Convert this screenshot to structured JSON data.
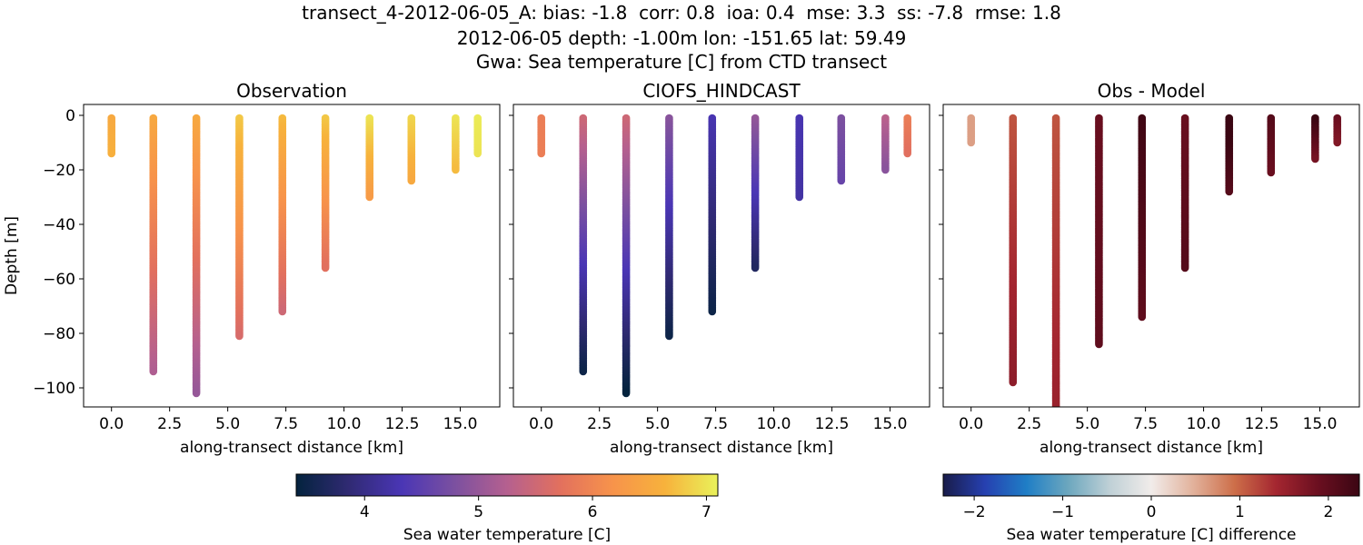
{
  "suptitle": {
    "line1": "transect_4-2012-06-05_A: bias: -1.8  corr: 0.8  ioa: 0.4  mse: 3.3  ss: -7.8  rmse: 1.8",
    "line2": "2012-06-05 depth: -1.00m lon: -151.65 lat: 59.49",
    "line3": "Gwa: Sea temperature [C] from CTD transect"
  },
  "colors": {
    "thermal": [
      "#04233e",
      "#302a73",
      "#4a36b5",
      "#7b50a0",
      "#b5608f",
      "#e2705e",
      "#f7934b",
      "#f7b23c",
      "#e9f25a"
    ],
    "balance": [
      "#191c4a",
      "#2640b0",
      "#1f7ec6",
      "#6ca7be",
      "#bfd0d6",
      "#f1ecea",
      "#e2b29c",
      "#cd6e49",
      "#a42630",
      "#6b0f20",
      "#3b0613"
    ]
  },
  "chart_data": [
    {
      "type": "scatter",
      "title": "Observation",
      "xlabel": "along-transect distance [km]",
      "ylabel": "Depth [m]",
      "xlim": [
        -1.2,
        16.7
      ],
      "ylim": [
        -107,
        4
      ],
      "xticks": [
        "0.0",
        "2.5",
        "5.0",
        "7.5",
        "10.0",
        "12.5",
        "15.0"
      ],
      "xtick_values": [
        0,
        2.5,
        5,
        7.5,
        10,
        12.5,
        15
      ],
      "yticks": [
        "0",
        "−20",
        "−40",
        "−60",
        "−80",
        "−100"
      ],
      "ytick_values": [
        0,
        -20,
        -40,
        -60,
        -80,
        -100
      ],
      "colormap": "thermal",
      "clim": [
        3.4,
        7.1
      ],
      "profiles": [
        {
          "x": 0.0,
          "max_depth": 14,
          "value_top": 6.5,
          "value_bottom": 6.6
        },
        {
          "x": 1.8,
          "max_depth": 94,
          "value_top": 6.5,
          "value_bottom": 5.2
        },
        {
          "x": 3.65,
          "max_depth": 102,
          "value_top": 6.5,
          "value_bottom": 5.0
        },
        {
          "x": 5.5,
          "max_depth": 81,
          "value_top": 6.8,
          "value_bottom": 5.6
        },
        {
          "x": 7.35,
          "max_depth": 72,
          "value_top": 6.7,
          "value_bottom": 5.5
        },
        {
          "x": 9.2,
          "max_depth": 56,
          "value_top": 6.8,
          "value_bottom": 5.7
        },
        {
          "x": 11.1,
          "max_depth": 30,
          "value_top": 7.0,
          "value_bottom": 6.3
        },
        {
          "x": 12.9,
          "max_depth": 24,
          "value_top": 6.9,
          "value_bottom": 6.5
        },
        {
          "x": 14.8,
          "max_depth": 20,
          "value_top": 7.0,
          "value_bottom": 6.7
        },
        {
          "x": 15.75,
          "max_depth": 14,
          "value_top": 7.05,
          "value_bottom": 7.0
        }
      ]
    },
    {
      "type": "scatter",
      "title": "CIOFS_HINDCAST",
      "xlabel": "along-transect distance [km]",
      "xlim": [
        -1.2,
        16.7
      ],
      "ylim": [
        -107,
        4
      ],
      "xticks": [
        "0.0",
        "2.5",
        "5.0",
        "7.5",
        "10.0",
        "12.5",
        "15.0"
      ],
      "xtick_values": [
        0,
        2.5,
        5,
        7.5,
        10,
        12.5,
        15
      ],
      "ytick_values": [
        0,
        -20,
        -40,
        -60,
        -80,
        -100
      ],
      "colormap": "thermal",
      "clim": [
        3.4,
        7.1
      ],
      "profiles": [
        {
          "x": 0.0,
          "max_depth": 14,
          "value_top": 5.9,
          "value_bottom": 5.9
        },
        {
          "x": 1.8,
          "max_depth": 94,
          "value_top": 5.5,
          "value_bottom": 3.5
        },
        {
          "x": 3.65,
          "max_depth": 102,
          "value_top": 5.5,
          "value_bottom": 3.4
        },
        {
          "x": 5.5,
          "max_depth": 81,
          "value_top": 4.9,
          "value_bottom": 3.5
        },
        {
          "x": 7.35,
          "max_depth": 72,
          "value_top": 4.3,
          "value_bottom": 3.5
        },
        {
          "x": 9.2,
          "max_depth": 56,
          "value_top": 5.0,
          "value_bottom": 3.7
        },
        {
          "x": 11.1,
          "max_depth": 30,
          "value_top": 4.3,
          "value_bottom": 4.2
        },
        {
          "x": 12.9,
          "max_depth": 24,
          "value_top": 4.8,
          "value_bottom": 4.6
        },
        {
          "x": 14.8,
          "max_depth": 20,
          "value_top": 5.3,
          "value_bottom": 4.9
        },
        {
          "x": 15.75,
          "max_depth": 14,
          "value_top": 5.9,
          "value_bottom": 5.7
        }
      ]
    },
    {
      "type": "scatter",
      "title": "Obs - Model",
      "xlabel": "along-transect distance [km]",
      "xlim": [
        -1.2,
        16.7
      ],
      "ylim": [
        -107,
        4
      ],
      "xticks": [
        "0.0",
        "2.5",
        "5.0",
        "7.5",
        "10.0",
        "12.5",
        "15.0"
      ],
      "xtick_values": [
        0,
        2.5,
        5,
        7.5,
        10,
        12.5,
        15
      ],
      "ytick_values": [
        0,
        -20,
        -40,
        -60,
        -80,
        -100
      ],
      "colormap": "balance",
      "clim": [
        -2.35,
        2.35
      ],
      "profiles": [
        {
          "x": 0.0,
          "max_depth": 10,
          "value_top": 0.6,
          "value_bottom": 0.6
        },
        {
          "x": 1.8,
          "max_depth": 98,
          "value_top": 1.1,
          "value_bottom": 1.6
        },
        {
          "x": 3.65,
          "max_depth": 107,
          "value_top": 1.1,
          "value_bottom": 1.5
        },
        {
          "x": 5.5,
          "max_depth": 84,
          "value_top": 1.9,
          "value_bottom": 2.0
        },
        {
          "x": 7.35,
          "max_depth": 74,
          "value_top": 2.3,
          "value_bottom": 2.0
        },
        {
          "x": 9.2,
          "max_depth": 56,
          "value_top": 1.9,
          "value_bottom": 2.1
        },
        {
          "x": 11.1,
          "max_depth": 28,
          "value_top": 2.5,
          "value_bottom": 2.1
        },
        {
          "x": 12.9,
          "max_depth": 21,
          "value_top": 2.1,
          "value_bottom": 1.9
        },
        {
          "x": 14.8,
          "max_depth": 16,
          "value_top": 2.4,
          "value_bottom": 1.8
        },
        {
          "x": 15.75,
          "max_depth": 10,
          "value_top": 1.9,
          "value_bottom": 1.7
        }
      ]
    }
  ],
  "colorbars": [
    {
      "label": "Sea water temperature [C]",
      "colormap": "thermal",
      "clim": [
        3.4,
        7.1
      ],
      "ticks": [
        "4",
        "5",
        "6",
        "7"
      ],
      "tick_values": [
        4,
        5,
        6,
        7
      ]
    },
    {
      "label": "Sea water temperature [C] difference",
      "colormap": "balance",
      "clim": [
        -2.35,
        2.35
      ],
      "ticks": [
        "−2",
        "−1",
        "0",
        "1",
        "2"
      ],
      "tick_values": [
        -2,
        -1,
        0,
        1,
        2
      ]
    }
  ]
}
